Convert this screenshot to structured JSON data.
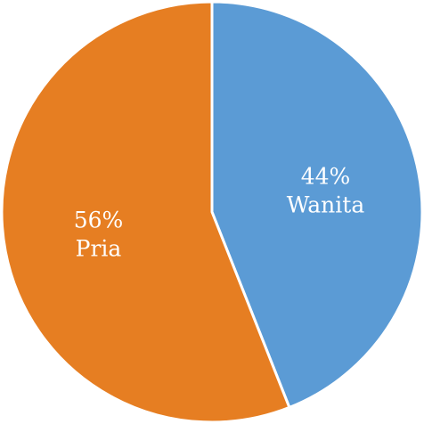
{
  "chart_data": {
    "type": "pie",
    "categories": [
      "Wanita",
      "Pria"
    ],
    "values": [
      44,
      56
    ],
    "value_labels": [
      "44%",
      "56%"
    ],
    "colors": [
      "#5B9BD5",
      "#E67E22"
    ],
    "start_angle_deg": 0,
    "direction": "clockwise",
    "legend": "none"
  }
}
